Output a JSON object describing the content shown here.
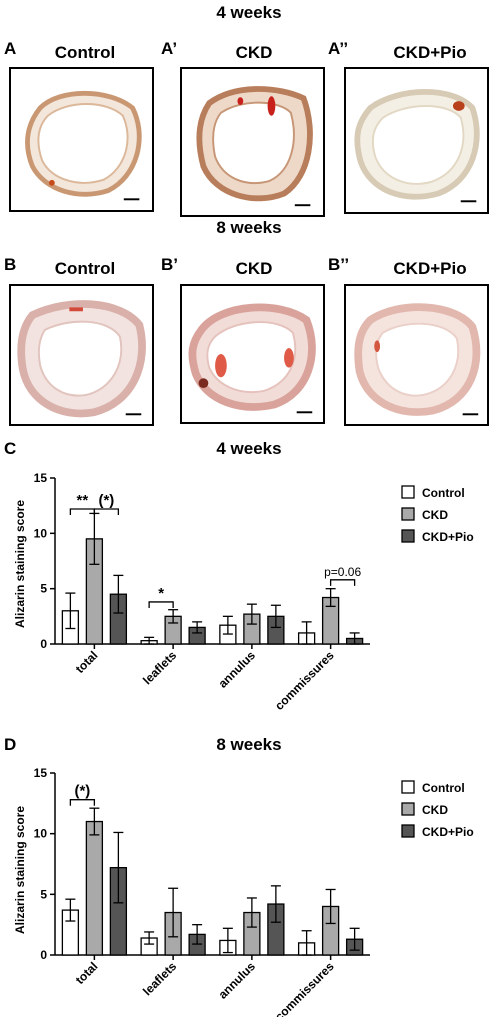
{
  "headings": {
    "top": "4 weeks",
    "middle": "8 weeks"
  },
  "panels": [
    {
      "label": "A",
      "title": "Control"
    },
    {
      "label": "A’",
      "title": "CKD"
    },
    {
      "label": "A’’",
      "title": "CKD+Pio"
    },
    {
      "label": "B",
      "title": "Control"
    },
    {
      "label": "B’",
      "title": "CKD"
    },
    {
      "label": "B’’",
      "title": "CKD+Pio"
    }
  ],
  "colors": {
    "control": "#ffffff",
    "ckd": "#a9a9a9",
    "ckd_pio": "#555555"
  },
  "chart_data": [
    {
      "type": "bar",
      "panel_label": "C",
      "title": "4 weeks",
      "ylabel": "Alizarin staining score",
      "xlabel": "",
      "ylim": [
        0,
        15
      ],
      "yticks": [
        0,
        5,
        10,
        15
      ],
      "grid": false,
      "legend": "top-right",
      "categories": [
        "total",
        "leaflets",
        "annulus",
        "commissures"
      ],
      "series": [
        {
          "name": "Control",
          "values": [
            3.0,
            0.3,
            1.7,
            1.0
          ],
          "errors": [
            1.6,
            0.3,
            0.8,
            1.0
          ]
        },
        {
          "name": "CKD",
          "values": [
            9.5,
            2.5,
            2.7,
            4.2
          ],
          "errors": [
            2.3,
            0.6,
            0.9,
            0.8
          ]
        },
        {
          "name": "CKD+Pio",
          "values": [
            4.5,
            1.5,
            2.5,
            0.5
          ],
          "errors": [
            1.7,
            0.5,
            1.0,
            0.5
          ]
        }
      ],
      "annotations": [
        {
          "text": "**",
          "category": 0,
          "from": 0,
          "to": 1,
          "y": 12.2
        },
        {
          "text": "(*)",
          "category": 0,
          "from": 1,
          "to": 2,
          "y": 12.2
        },
        {
          "text": "*",
          "category": 1,
          "from": 0,
          "to": 1,
          "y": 3.8
        },
        {
          "text": "p=0.06",
          "category": 3,
          "from": 1,
          "to": 2,
          "y": 5.8
        }
      ]
    },
    {
      "type": "bar",
      "panel_label": "D",
      "title": "8 weeks",
      "ylabel": "Alizarin staining score",
      "xlabel": "",
      "ylim": [
        0,
        15
      ],
      "yticks": [
        0,
        5,
        10,
        15
      ],
      "grid": false,
      "legend": "top-right",
      "categories": [
        "total",
        "leaflets",
        "annulus",
        "commissures"
      ],
      "series": [
        {
          "name": "Control",
          "values": [
            3.7,
            1.4,
            1.2,
            1.0
          ],
          "errors": [
            0.9,
            0.5,
            1.0,
            1.0
          ]
        },
        {
          "name": "CKD",
          "values": [
            11.0,
            3.5,
            3.5,
            4.0
          ],
          "errors": [
            1.1,
            2.0,
            1.2,
            1.4
          ]
        },
        {
          "name": "CKD+Pio",
          "values": [
            7.2,
            1.7,
            4.2,
            1.3
          ],
          "errors": [
            2.9,
            0.8,
            1.5,
            0.9
          ]
        }
      ],
      "annotations": [
        {
          "text": "(*)",
          "category": 0,
          "from": 0,
          "to": 1,
          "y": 12.8
        }
      ]
    }
  ]
}
